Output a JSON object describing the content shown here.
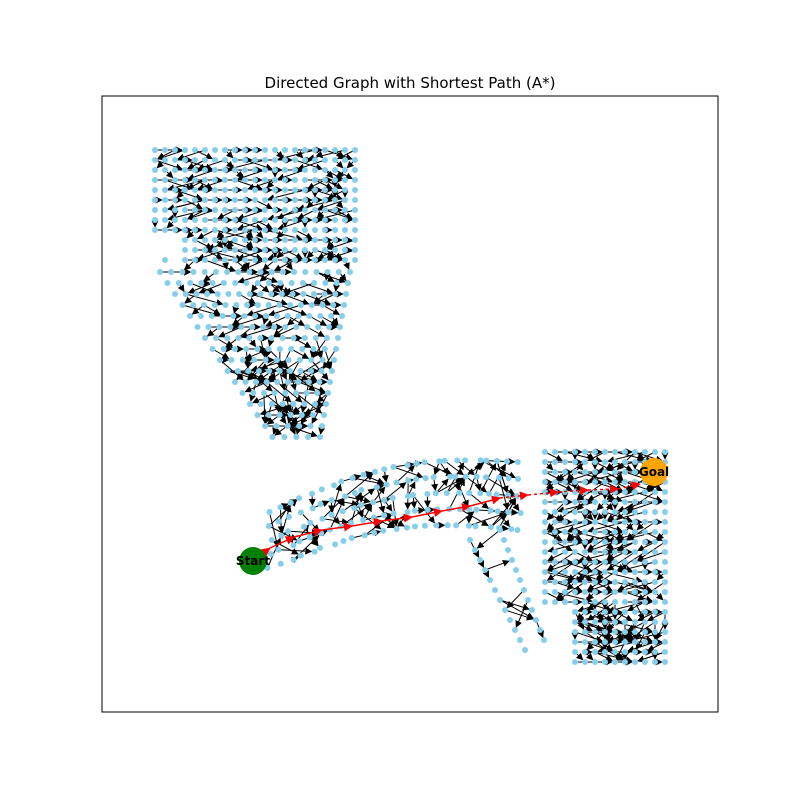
{
  "figure": {
    "title": "Directed Graph with Shortest Path (A*)"
  },
  "graph": {
    "directed": true,
    "algorithm": "A*",
    "start": {
      "label": "Start",
      "color": "#008000"
    },
    "goal": {
      "label": "Goal",
      "color": "#ffa500"
    },
    "colors": {
      "node": "#87ceeb",
      "edge": "#000000",
      "path_edge": "#ff0000",
      "frame": "#000000"
    }
  }
}
